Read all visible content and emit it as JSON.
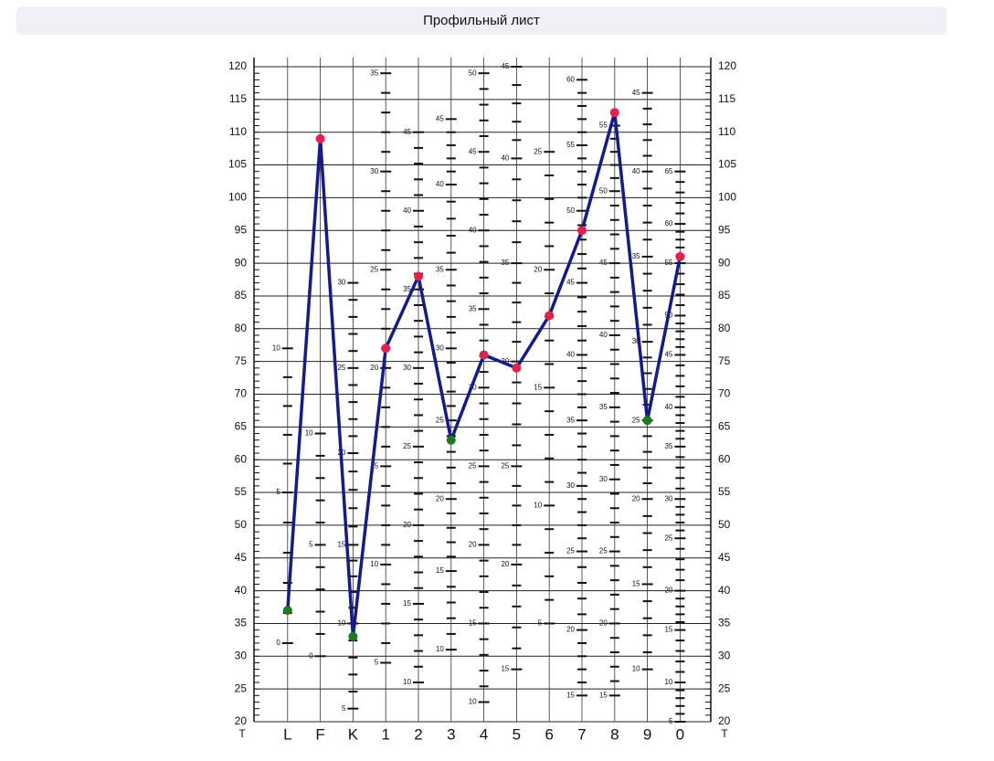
{
  "chart_data": {
    "type": "line",
    "title": "Профильный лист",
    "categories": [
      "L",
      "F",
      "K",
      "1",
      "2",
      "3",
      "4",
      "5",
      "6",
      "7",
      "8",
      "9",
      "0"
    ],
    "values": [
      37,
      109,
      33,
      77,
      88,
      63,
      76,
      74,
      82,
      95,
      113,
      66,
      91
    ],
    "color": "#141b8c",
    "point_colors": [
      "#1e7a1e",
      "#e0234e",
      "#1e7a1e",
      "#e0234e",
      "#e0234e",
      "#1e7a1e",
      "#e0234e",
      "#e0234e",
      "#e0234e",
      "#e0234e",
      "#e0234e",
      "#1e7a1e",
      "#e0234e"
    ],
    "ylim": [
      20,
      120
    ],
    "yticks": [
      20,
      25,
      30,
      35,
      40,
      45,
      50,
      55,
      60,
      65,
      70,
      75,
      80,
      85,
      90,
      95,
      100,
      105,
      110,
      115,
      120
    ],
    "y_axis_label": "T",
    "grid": true,
    "raw_scales": [
      [
        {
          "value": 77,
          "label": "10"
        },
        {
          "value": 55,
          "label": "5"
        },
        {
          "value": 32,
          "label": "0"
        }
      ],
      [
        {
          "value": 64,
          "label": "10"
        },
        {
          "value": 47,
          "label": "5"
        },
        {
          "value": 30,
          "label": "0"
        }
      ],
      [
        {
          "value": 87,
          "label": "30"
        },
        {
          "value": 74,
          "label": "25"
        },
        {
          "value": 61,
          "label": "20"
        },
        {
          "value": 47,
          "label": "15"
        },
        {
          "value": 35,
          "label": "10"
        },
        {
          "value": 22,
          "label": "5"
        }
      ],
      [
        {
          "value": 119,
          "label": "35"
        },
        {
          "value": 104,
          "label": "30"
        },
        {
          "value": 89,
          "label": "25"
        },
        {
          "value": 74,
          "label": "20"
        },
        {
          "value": 59,
          "label": "15"
        },
        {
          "value": 44,
          "label": "10"
        },
        {
          "value": 29,
          "label": "5"
        }
      ],
      [
        {
          "value": 110,
          "label": "45"
        },
        {
          "value": 98,
          "label": "40"
        },
        {
          "value": 86,
          "label": "35"
        },
        {
          "value": 74,
          "label": "30"
        },
        {
          "value": 62,
          "label": "25"
        },
        {
          "value": 50,
          "label": "20"
        },
        {
          "value": 38,
          "label": "15"
        },
        {
          "value": 26,
          "label": "10"
        }
      ],
      [
        {
          "value": 112,
          "label": "45"
        },
        {
          "value": 102,
          "label": "40"
        },
        {
          "value": 89,
          "label": "35"
        },
        {
          "value": 77,
          "label": "30"
        },
        {
          "value": 66,
          "label": "25"
        },
        {
          "value": 54,
          "label": "20"
        },
        {
          "value": 43,
          "label": "15"
        },
        {
          "value": 31,
          "label": "10"
        }
      ],
      [
        {
          "value": 119,
          "label": "50"
        },
        {
          "value": 107,
          "label": "45"
        },
        {
          "value": 95,
          "label": "40"
        },
        {
          "value": 83,
          "label": "35"
        },
        {
          "value": 71,
          "label": "30"
        },
        {
          "value": 59,
          "label": "25"
        },
        {
          "value": 47,
          "label": "20"
        },
        {
          "value": 35,
          "label": "15"
        },
        {
          "value": 23,
          "label": "10"
        }
      ],
      [
        {
          "value": 120,
          "label": "45"
        },
        {
          "value": 106,
          "label": "40"
        },
        {
          "value": 90,
          "label": "35"
        },
        {
          "value": 75,
          "label": "30"
        },
        {
          "value": 59,
          "label": "25"
        },
        {
          "value": 44,
          "label": "20"
        },
        {
          "value": 28,
          "label": "15"
        }
      ],
      [
        {
          "value": 107,
          "label": "25"
        },
        {
          "value": 89,
          "label": "20"
        },
        {
          "value": 71,
          "label": "15"
        },
        {
          "value": 53,
          "label": "10"
        },
        {
          "value": 35,
          "label": "5"
        }
      ],
      [
        {
          "value": 118,
          "label": "60"
        },
        {
          "value": 108,
          "label": "55"
        },
        {
          "value": 98,
          "label": "50"
        },
        {
          "value": 87,
          "label": "45"
        },
        {
          "value": 76,
          "label": "40"
        },
        {
          "value": 66,
          "label": "35"
        },
        {
          "value": 56,
          "label": "30"
        },
        {
          "value": 46,
          "label": "25"
        },
        {
          "value": 34,
          "label": "20"
        },
        {
          "value": 24,
          "label": "15"
        }
      ],
      [
        {
          "value": 111,
          "label": "55"
        },
        {
          "value": 101,
          "label": "50"
        },
        {
          "value": 90,
          "label": "45"
        },
        {
          "value": 79,
          "label": "40"
        },
        {
          "value": 68,
          "label": "35"
        },
        {
          "value": 57,
          "label": "30"
        },
        {
          "value": 46,
          "label": "25"
        },
        {
          "value": 35,
          "label": "20"
        },
        {
          "value": 24,
          "label": "15"
        }
      ],
      [
        {
          "value": 116,
          "label": "45"
        },
        {
          "value": 104,
          "label": "40"
        },
        {
          "value": 91,
          "label": "35"
        },
        {
          "value": 78,
          "label": "30"
        },
        {
          "value": 66,
          "label": "25"
        },
        {
          "value": 54,
          "label": "20"
        },
        {
          "value": 41,
          "label": "15"
        },
        {
          "value": 28,
          "label": "10"
        }
      ],
      [
        {
          "value": 104,
          "label": "65"
        },
        {
          "value": 96,
          "label": "60"
        },
        {
          "value": 90,
          "label": "55"
        },
        {
          "value": 82,
          "label": "50"
        },
        {
          "value": 76,
          "label": "45"
        },
        {
          "value": 68,
          "label": "40"
        },
        {
          "value": 62,
          "label": "35"
        },
        {
          "value": 54,
          "label": "30"
        },
        {
          "value": 48,
          "label": "25"
        },
        {
          "value": 40,
          "label": "20"
        },
        {
          "value": 34,
          "label": "15"
        },
        {
          "value": 26,
          "label": "10"
        },
        {
          "value": 20,
          "label": "5"
        }
      ]
    ]
  }
}
